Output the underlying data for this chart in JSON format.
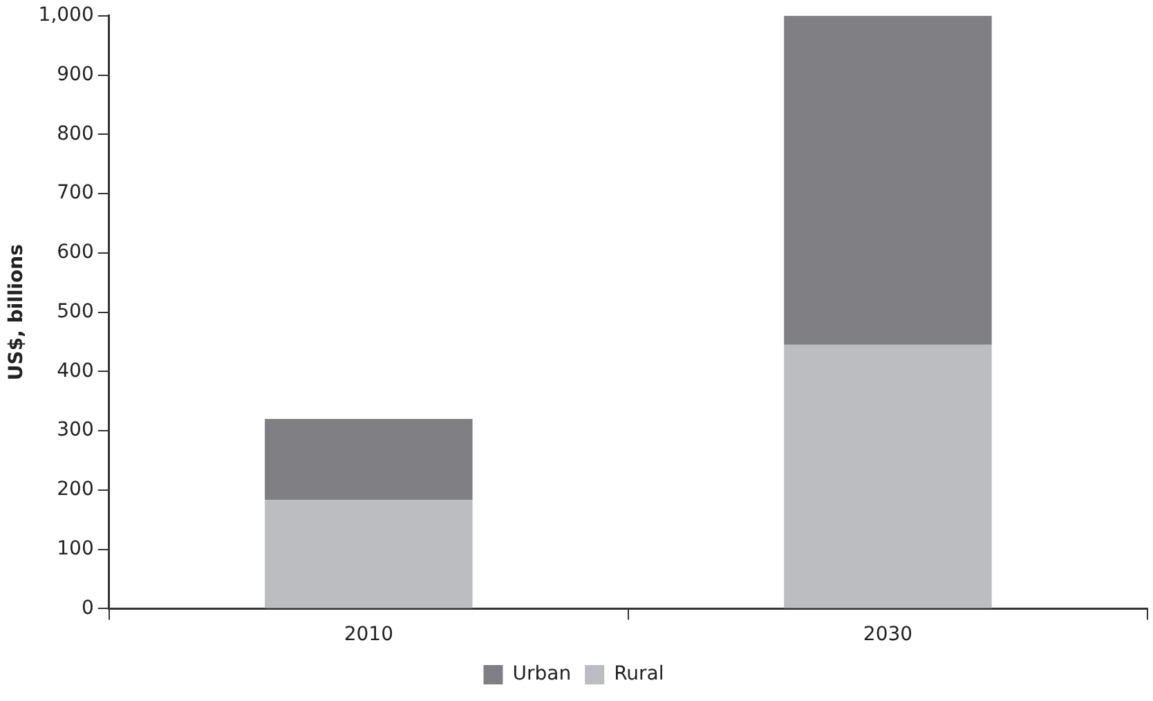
{
  "chart_data": {
    "type": "bar",
    "stacked": true,
    "ylabel": "US$, billions",
    "categories": [
      "2010",
      "2030"
    ],
    "series": [
      {
        "name": "Rural",
        "color": "#bcbdc1",
        "values": [
          183,
          445
        ]
      },
      {
        "name": "Urban",
        "color": "#808084",
        "values": [
          137,
          555
        ]
      }
    ],
    "ylim": [
      0,
      1000
    ],
    "yticks": [
      0,
      100,
      200,
      300,
      400,
      500,
      600,
      700,
      800,
      900,
      {
        "value": 1000,
        "label": "1,000"
      }
    ],
    "grid": false,
    "legend": "bottom"
  }
}
